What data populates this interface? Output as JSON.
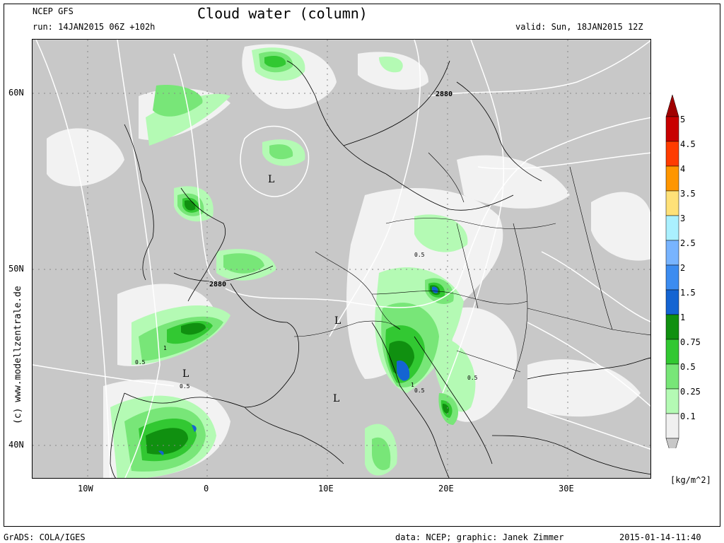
{
  "header": {
    "model": "NCEP GFS",
    "run": "run: 14JAN2015 06Z +102h",
    "title": "Cloud water (column)",
    "valid": "valid: Sun, 18JAN2015 12Z"
  },
  "map": {
    "lat_labels": [
      "60N",
      "50N",
      "40N"
    ],
    "lon_labels": [
      "10W",
      "0",
      "10E",
      "20E",
      "30E"
    ],
    "pressure_labels": [
      "2880",
      "2880"
    ],
    "low_markers": [
      "L",
      "L",
      "L",
      "L"
    ],
    "contour_values": [
      "0.5",
      "0.5",
      "0.5",
      "1",
      "0.5",
      "0.5",
      "1"
    ]
  },
  "legend": {
    "levels": [
      "5",
      "4.5",
      "4",
      "3.5",
      "3",
      "2.5",
      "2",
      "1.5",
      "1",
      "0.75",
      "0.5",
      "0.25",
      "0.1"
    ],
    "colors": [
      "#c80000",
      "#ff3c00",
      "#ff9600",
      "#ffe178",
      "#aaf0ff",
      "#78b4ff",
      "#3c8cf0",
      "#1464d2",
      "#109010",
      "#32c832",
      "#78e678",
      "#b4fab4",
      "#f0f0f0"
    ],
    "top_arrow_color": "#a00000",
    "bottom_arrow_color": "#c8c8c8",
    "unit": "[kg/m^2]"
  },
  "side_text": "(c) www.modellzentrale.de",
  "footer": {
    "grads": "GrADS: COLA/IGES",
    "credit": "data: NCEP; graphic: Janek Zimmer",
    "timestamp": "2015-01-14-11:40"
  }
}
